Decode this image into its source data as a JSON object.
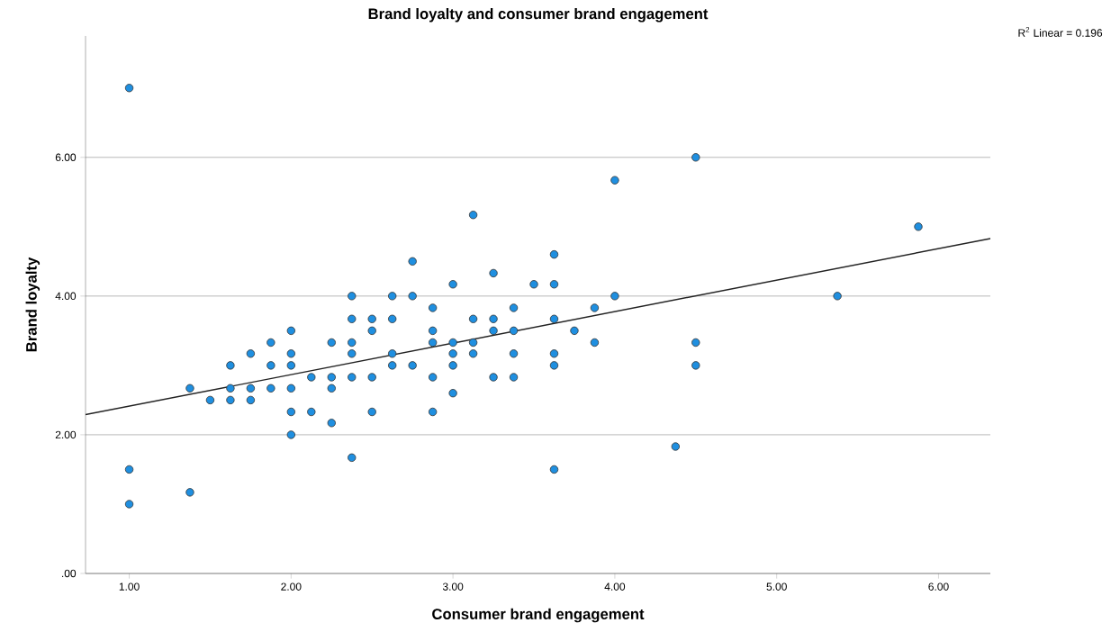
{
  "chart_data": {
    "type": "scatter",
    "title": "Brand loyalty and consumer brand engagement",
    "xlabel": "Consumer brand engagement",
    "ylabel": "Brand loyalty",
    "annotations": [
      "R$^{2}$ Linear = 0.196"
    ],
    "xlim": [
      0.73,
      6.32
    ],
    "ylim": [
      0,
      7.75
    ],
    "xticks": [
      {
        "value": 1,
        "label": "1.00"
      },
      {
        "value": 2,
        "label": "2.00"
      },
      {
        "value": 3,
        "label": "3.00"
      },
      {
        "value": 4,
        "label": "4.00"
      },
      {
        "value": 5,
        "label": "5.00"
      },
      {
        "value": 6,
        "label": "6.00"
      }
    ],
    "yticks": [
      {
        "value": 0,
        "label": ".00"
      },
      {
        "value": 2,
        "label": "2.00"
      },
      {
        "value": 4,
        "label": "4.00"
      },
      {
        "value": 6,
        "label": "6.00"
      }
    ],
    "grid": "y",
    "marker": "circle",
    "series": [
      {
        "color": "#1f8fe0",
        "x": [
          1.0,
          1.0,
          1.0,
          1.375,
          1.375,
          1.5,
          1.625,
          1.625,
          1.625,
          1.75,
          1.75,
          1.75,
          1.875,
          1.875,
          1.875,
          2.0,
          2.0,
          2.0,
          2.0,
          2.0,
          2.0,
          2.125,
          2.125,
          2.25,
          2.25,
          2.25,
          2.25,
          2.375,
          2.375,
          2.375,
          2.375,
          2.375,
          2.375,
          2.5,
          2.5,
          2.5,
          2.5,
          2.625,
          2.625,
          2.625,
          2.625,
          2.75,
          2.75,
          2.75,
          2.875,
          2.875,
          2.875,
          2.875,
          2.875,
          3.0,
          3.0,
          3.0,
          3.0,
          3.0,
          3.125,
          3.125,
          3.125,
          3.125,
          3.25,
          3.25,
          3.25,
          3.25,
          3.375,
          3.375,
          3.375,
          3.375,
          3.5,
          3.625,
          3.625,
          3.625,
          3.625,
          3.625,
          3.625,
          3.75,
          3.875,
          3.875,
          4.0,
          4.0,
          4.375,
          4.5,
          4.5,
          4.5,
          5.375,
          5.875
        ],
        "values": [
          7.0,
          1.5,
          1.0,
          1.17,
          2.67,
          2.5,
          3.0,
          2.67,
          2.5,
          3.17,
          2.67,
          2.5,
          3.33,
          3.0,
          2.67,
          3.5,
          3.17,
          3.0,
          2.67,
          2.33,
          2.0,
          2.83,
          2.33,
          3.33,
          2.83,
          2.67,
          2.17,
          4.0,
          3.67,
          3.33,
          3.17,
          2.83,
          1.67,
          3.67,
          3.5,
          2.83,
          2.33,
          4.0,
          3.67,
          3.17,
          3.0,
          4.5,
          4.0,
          3.0,
          3.83,
          3.5,
          3.33,
          2.83,
          2.33,
          4.17,
          3.33,
          3.17,
          3.0,
          2.6,
          5.17,
          3.67,
          3.33,
          3.17,
          4.33,
          3.67,
          3.5,
          2.83,
          3.83,
          3.5,
          3.17,
          2.83,
          4.17,
          4.6,
          4.17,
          3.67,
          3.17,
          3.0,
          1.5,
          3.5,
          3.83,
          3.33,
          5.67,
          4.0,
          1.83,
          6.0,
          3.33,
          3.0,
          4.0,
          5.0
        ]
      },
      {
        "type": "line",
        "color": "#222222",
        "marker": "none",
        "x": [
          0.73,
          6.32
        ],
        "values": [
          2.29,
          4.83
        ]
      }
    ]
  }
}
